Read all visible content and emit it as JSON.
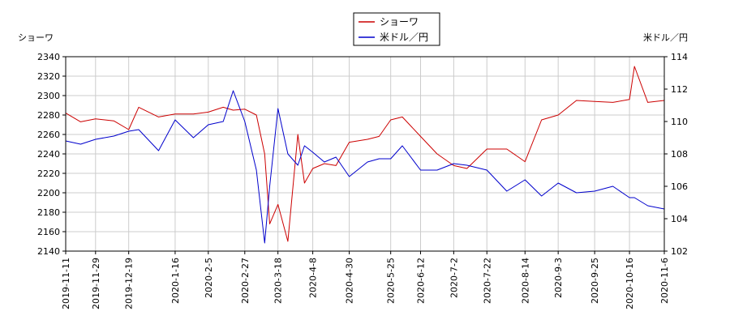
{
  "chart_data": {
    "type": "line",
    "legend": {
      "placement": "top-center",
      "entries": [
        "ショーワ",
        "米ドル／円"
      ]
    },
    "axes": {
      "left": {
        "label": "ショーワ",
        "ylim": [
          2140,
          2340
        ],
        "ticks": [
          2140,
          2160,
          2180,
          2200,
          2220,
          2240,
          2260,
          2280,
          2300,
          2320,
          2340
        ]
      },
      "right": {
        "label": "米ドル／円",
        "ylim": [
          102,
          114
        ],
        "ticks": [
          102,
          104,
          106,
          108,
          110,
          112,
          114
        ]
      },
      "x": {
        "ticks": [
          "2019-11-11",
          "2019-11-29",
          "2019-12-19",
          "2020-1-16",
          "2020-2-5",
          "2020-2-27",
          "2020-3-18",
          "2020-4-8",
          "2020-4-30",
          "2020-5-25",
          "2020-6-12",
          "2020-7-2",
          "2020-7-22",
          "2020-8-14",
          "2020-9-3",
          "2020-9-25",
          "2020-10-16",
          "2020-11-6"
        ]
      }
    },
    "grid": true,
    "series": [
      {
        "name": "ショーワ",
        "axis": "left",
        "color": "#cc0000",
        "x": [
          "2019-11-11",
          "2019-11-20",
          "2019-11-29",
          "2019-12-10",
          "2019-12-19",
          "2019-12-25",
          "2020-1-6",
          "2020-1-16",
          "2020-1-27",
          "2020-2-5",
          "2020-2-14",
          "2020-2-20",
          "2020-2-27",
          "2020-3-5",
          "2020-3-10",
          "2020-3-13",
          "2020-3-18",
          "2020-3-24",
          "2020-3-30",
          "2020-4-3",
          "2020-4-8",
          "2020-4-15",
          "2020-4-22",
          "2020-4-30",
          "2020-5-11",
          "2020-5-18",
          "2020-5-25",
          "2020-6-1",
          "2020-6-12",
          "2020-6-22",
          "2020-7-2",
          "2020-7-10",
          "2020-7-22",
          "2020-8-3",
          "2020-8-14",
          "2020-8-24",
          "2020-9-3",
          "2020-9-14",
          "2020-9-25",
          "2020-10-6",
          "2020-10-16",
          "2020-10-19",
          "2020-10-27",
          "2020-11-6"
        ],
        "y": [
          2282,
          2273,
          2276,
          2274,
          2265,
          2288,
          2278,
          2281,
          2281,
          2283,
          2288,
          2285,
          2286,
          2280,
          2240,
          2168,
          2188,
          2150,
          2260,
          2210,
          2225,
          2230,
          2228,
          2252,
          2255,
          2258,
          2275,
          2278,
          2258,
          2240,
          2228,
          2225,
          2245,
          2245,
          2232,
          2275,
          2280,
          2295,
          2294,
          2293,
          2296,
          2330,
          2293,
          2295
        ]
      },
      {
        "name": "米ドル／円",
        "axis": "right",
        "color": "#0000cc",
        "x": [
          "2019-11-11",
          "2019-11-20",
          "2019-11-29",
          "2019-12-10",
          "2019-12-19",
          "2019-12-25",
          "2020-1-6",
          "2020-1-16",
          "2020-1-27",
          "2020-2-5",
          "2020-2-14",
          "2020-2-20",
          "2020-2-27",
          "2020-3-5",
          "2020-3-10",
          "2020-3-13",
          "2020-3-18",
          "2020-3-24",
          "2020-3-30",
          "2020-4-3",
          "2020-4-8",
          "2020-4-15",
          "2020-4-22",
          "2020-4-30",
          "2020-5-11",
          "2020-5-18",
          "2020-5-25",
          "2020-6-1",
          "2020-6-12",
          "2020-6-22",
          "2020-7-2",
          "2020-7-10",
          "2020-7-22",
          "2020-8-3",
          "2020-8-14",
          "2020-8-24",
          "2020-9-3",
          "2020-9-14",
          "2020-9-25",
          "2020-10-6",
          "2020-10-16",
          "2020-10-19",
          "2020-10-27",
          "2020-11-6"
        ],
        "y": [
          108.8,
          108.6,
          108.9,
          109.1,
          109.4,
          109.5,
          108.2,
          110.1,
          109.0,
          109.8,
          110.0,
          111.9,
          110.0,
          107.0,
          102.5,
          106.0,
          110.8,
          108.0,
          107.3,
          108.5,
          108.1,
          107.5,
          107.8,
          106.6,
          107.5,
          107.7,
          107.7,
          108.5,
          107.0,
          107.0,
          107.4,
          107.3,
          107.0,
          105.7,
          106.4,
          105.4,
          106.2,
          105.6,
          105.7,
          106.0,
          105.3,
          105.3,
          104.8,
          104.6
        ]
      }
    ]
  }
}
